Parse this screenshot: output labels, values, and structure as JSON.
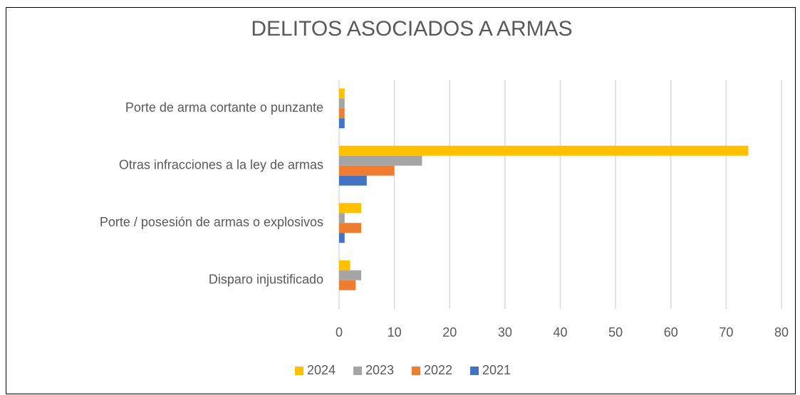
{
  "chart_data": {
    "type": "bar",
    "orientation": "horizontal",
    "title": "DELITOS ASOCIADOS A ARMAS",
    "categories": [
      "Porte de arma cortante o punzante",
      "Otras infracciones a la ley de armas",
      "Porte / posesión de armas o explosivos",
      "Disparo injustificado"
    ],
    "series": [
      {
        "name": "2024",
        "color": "#ffc000",
        "values": [
          1,
          74,
          4,
          2
        ]
      },
      {
        "name": "2023",
        "color": "#a5a5a5",
        "values": [
          1,
          15,
          1,
          4
        ]
      },
      {
        "name": "2022",
        "color": "#ed7d31",
        "values": [
          1,
          10,
          4,
          3
        ]
      },
      {
        "name": "2021",
        "color": "#4472c4",
        "values": [
          1,
          5,
          1,
          0
        ]
      }
    ],
    "xlim": [
      0,
      80
    ],
    "xticks": [
      0,
      10,
      20,
      30,
      40,
      50,
      60,
      70,
      80
    ],
    "grid": true,
    "legend": "bottom"
  }
}
